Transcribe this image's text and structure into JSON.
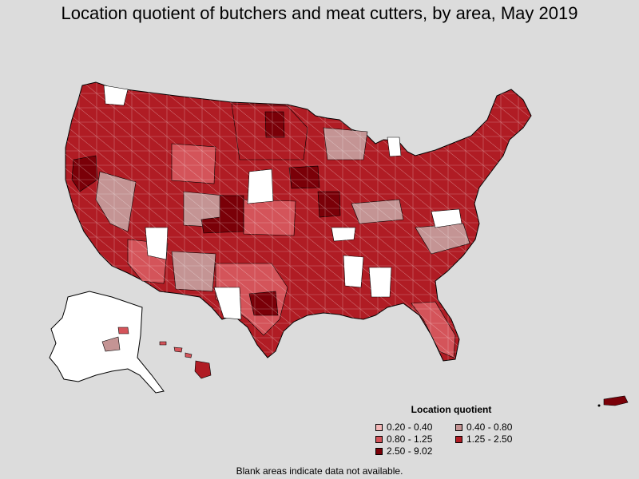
{
  "title": "Location quotient of butchers and meat cutters, by area, May 2019",
  "legend": {
    "title": "Location quotient",
    "items": [
      {
        "label": "0.20 - 0.40",
        "color": "#f4b8b8"
      },
      {
        "label": "0.40 - 0.80",
        "color": "#c49494"
      },
      {
        "label": "0.80 - 1.25",
        "color": "#d4545a"
      },
      {
        "label": "1.25 - 2.50",
        "color": "#b01c24"
      },
      {
        "label": "2.50 - 9.02",
        "color": "#7a0008"
      }
    ]
  },
  "no_data_color": "#ffffff",
  "footnote": "Blank areas indicate data not available."
}
